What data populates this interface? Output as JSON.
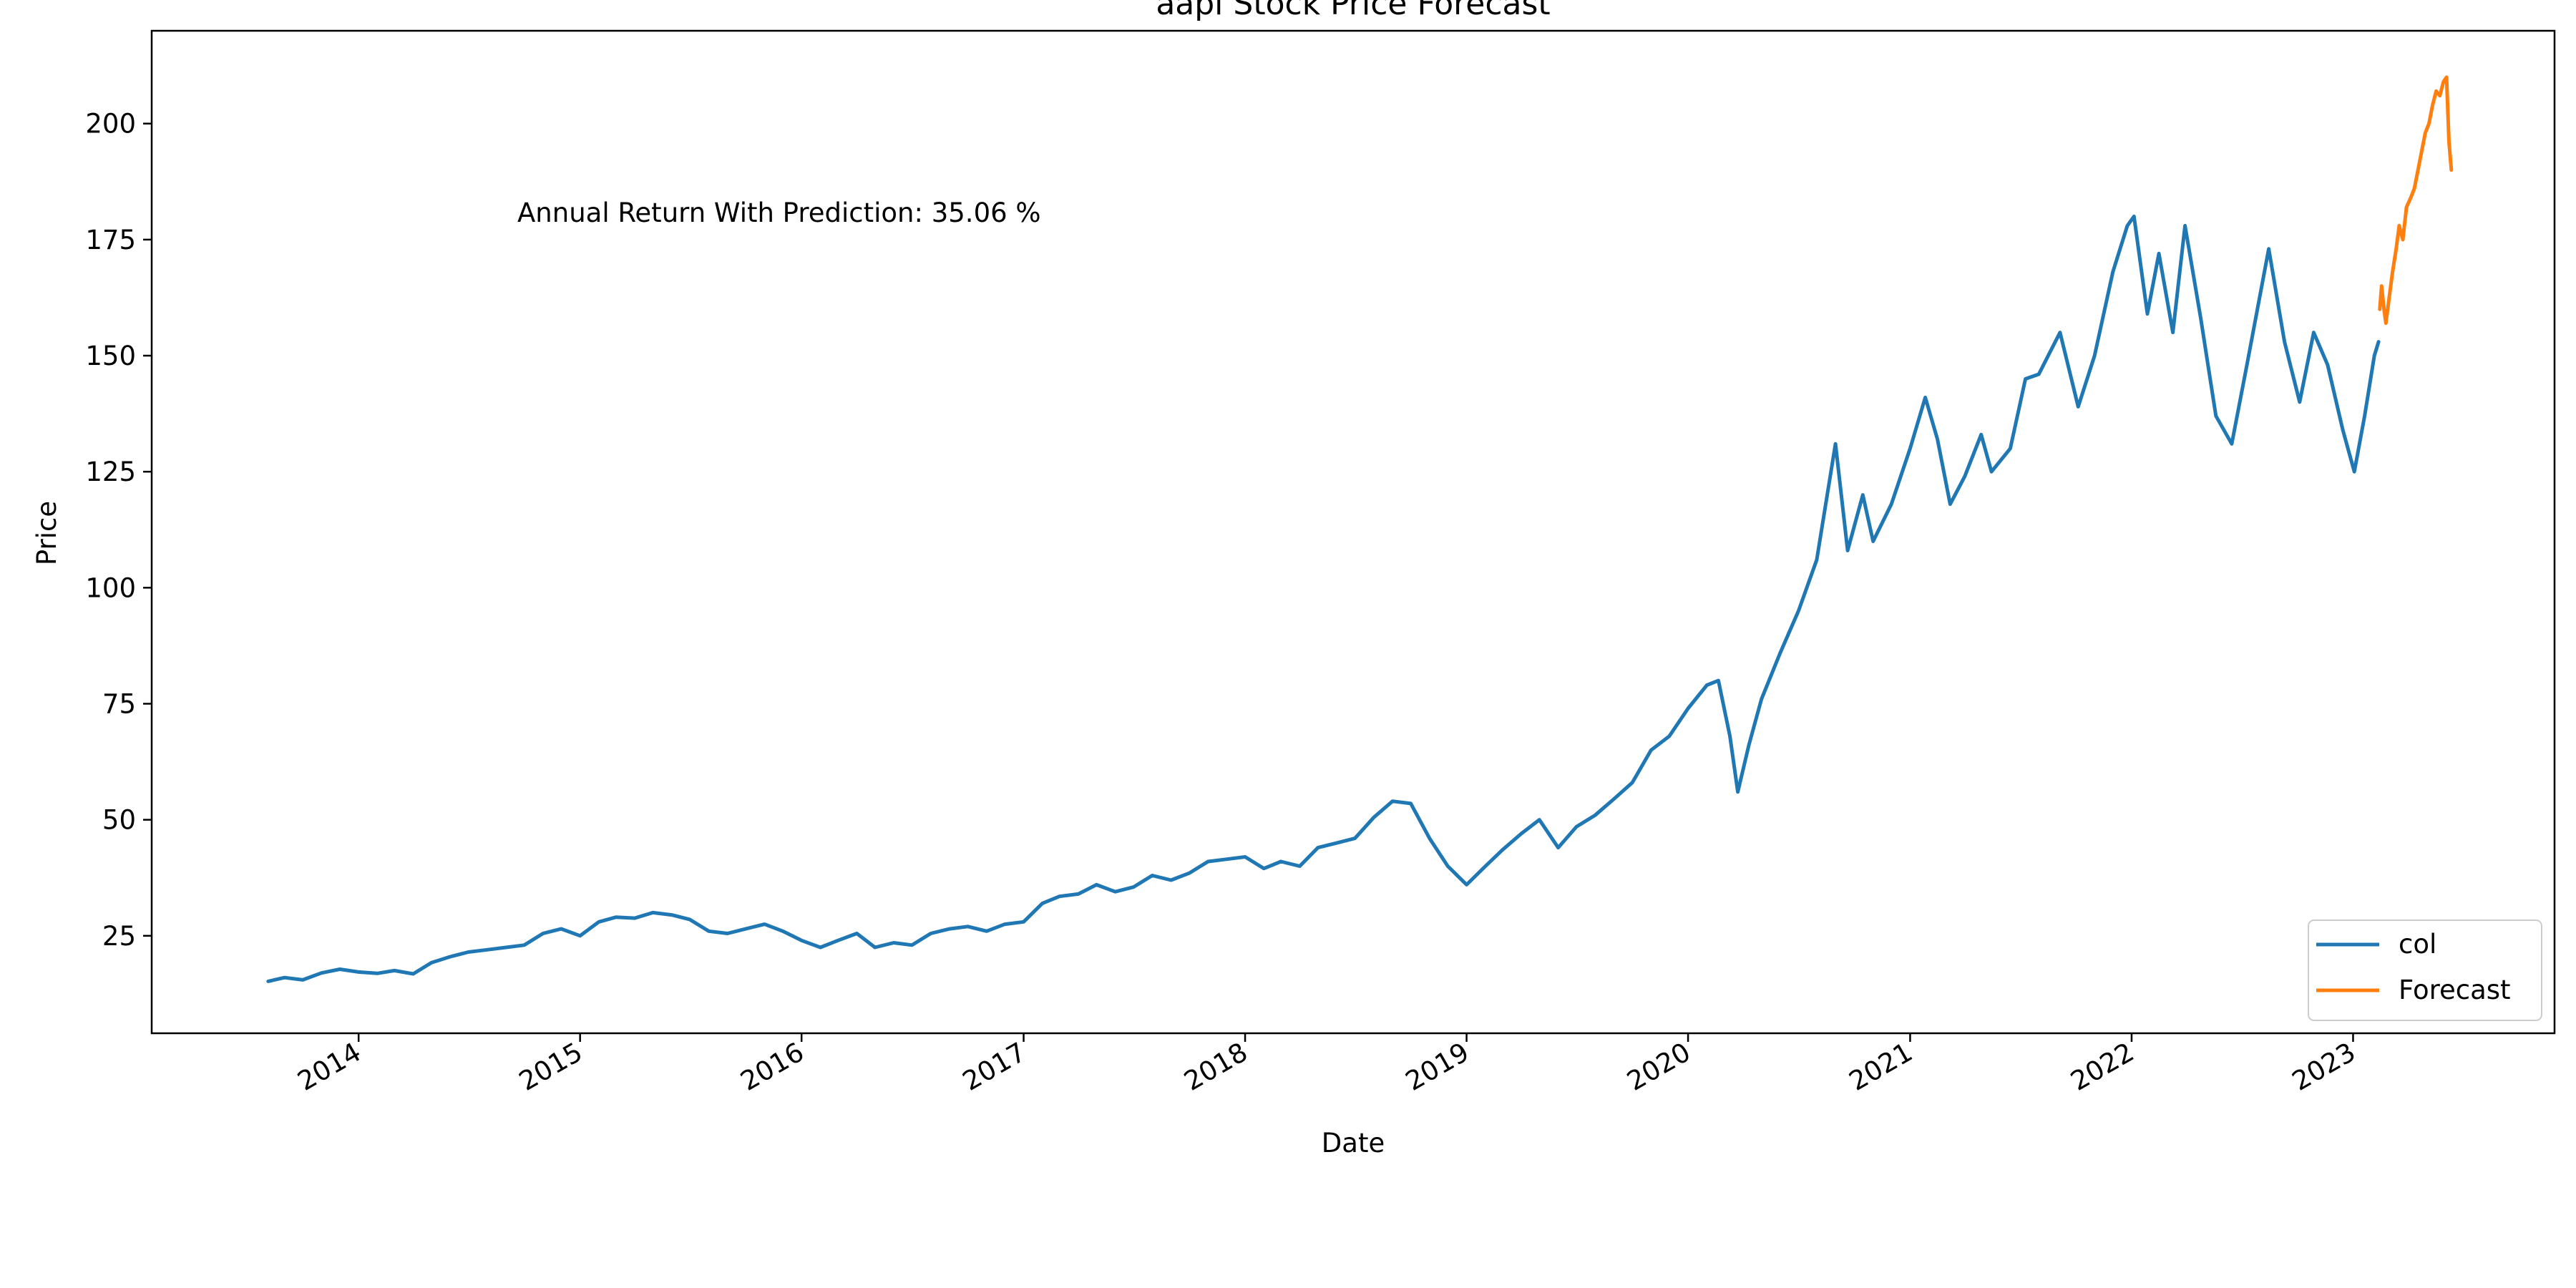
{
  "chart_data": {
    "type": "line",
    "title": "aapl Stock Price Forecast",
    "xlabel": "Date",
    "ylabel": "Price",
    "x_type": "date",
    "xlim": [
      "2013-01-25",
      "2023-11-29"
    ],
    "ylim": [
      4,
      220
    ],
    "x_ticks": [
      "2014-01-01",
      "2015-01-01",
      "2016-01-01",
      "2017-01-01",
      "2018-01-01",
      "2019-01-01",
      "2020-01-01",
      "2021-01-01",
      "2022-01-01",
      "2023-01-01"
    ],
    "x_tick_labels": [
      "2014",
      "2015",
      "2016",
      "2017",
      "2018",
      "2019",
      "2020",
      "2021",
      "2022",
      "2023"
    ],
    "y_ticks": [
      25,
      50,
      75,
      100,
      125,
      150,
      175,
      200
    ],
    "y_tick_labels": [
      "25",
      "50",
      "75",
      "100",
      "125",
      "150",
      "175",
      "200"
    ],
    "grid": false,
    "legend_position": "lower-right",
    "annotation": "Annual Return With Prediction: 35.06 %",
    "series": [
      {
        "name": "col",
        "color": "#1f77b4",
        "points": [
          [
            "2013-08-05",
            15.2
          ],
          [
            "2013-09-01",
            16.0
          ],
          [
            "2013-10-01",
            15.5
          ],
          [
            "2013-11-01",
            17.0
          ],
          [
            "2013-12-01",
            17.8
          ],
          [
            "2014-01-01",
            17.2
          ],
          [
            "2014-02-01",
            16.9
          ],
          [
            "2014-03-01",
            17.5
          ],
          [
            "2014-04-01",
            16.8
          ],
          [
            "2014-05-01",
            19.2
          ],
          [
            "2014-06-01",
            20.5
          ],
          [
            "2014-07-01",
            21.5
          ],
          [
            "2014-08-01",
            22.0
          ],
          [
            "2014-09-01",
            22.5
          ],
          [
            "2014-10-01",
            23.0
          ],
          [
            "2014-11-01",
            25.5
          ],
          [
            "2014-12-01",
            26.5
          ],
          [
            "2015-01-01",
            25.0
          ],
          [
            "2015-02-01",
            28.0
          ],
          [
            "2015-03-01",
            29.0
          ],
          [
            "2015-04-01",
            28.8
          ],
          [
            "2015-05-01",
            30.0
          ],
          [
            "2015-06-01",
            29.5
          ],
          [
            "2015-07-01",
            28.5
          ],
          [
            "2015-08-01",
            26.0
          ],
          [
            "2015-09-01",
            25.5
          ],
          [
            "2015-10-01",
            26.5
          ],
          [
            "2015-11-01",
            27.5
          ],
          [
            "2015-12-01",
            26.0
          ],
          [
            "2016-01-01",
            24.0
          ],
          [
            "2016-02-01",
            22.5
          ],
          [
            "2016-03-01",
            24.0
          ],
          [
            "2016-04-01",
            25.5
          ],
          [
            "2016-05-01",
            22.5
          ],
          [
            "2016-06-01",
            23.5
          ],
          [
            "2016-07-01",
            23.0
          ],
          [
            "2016-08-01",
            25.5
          ],
          [
            "2016-09-01",
            26.5
          ],
          [
            "2016-10-01",
            27.0
          ],
          [
            "2016-11-01",
            26.0
          ],
          [
            "2016-12-01",
            27.5
          ],
          [
            "2017-01-01",
            28.0
          ],
          [
            "2017-02-01",
            32.0
          ],
          [
            "2017-03-01",
            33.5
          ],
          [
            "2017-04-01",
            34.0
          ],
          [
            "2017-05-01",
            36.0
          ],
          [
            "2017-06-01",
            34.5
          ],
          [
            "2017-07-01",
            35.5
          ],
          [
            "2017-08-01",
            38.0
          ],
          [
            "2017-09-01",
            37.0
          ],
          [
            "2017-10-01",
            38.5
          ],
          [
            "2017-11-01",
            41.0
          ],
          [
            "2017-12-01",
            41.5
          ],
          [
            "2018-01-01",
            42.0
          ],
          [
            "2018-02-01",
            39.5
          ],
          [
            "2018-03-01",
            41.0
          ],
          [
            "2018-04-01",
            40.0
          ],
          [
            "2018-05-01",
            44.0
          ],
          [
            "2018-06-01",
            45.0
          ],
          [
            "2018-07-01",
            46.0
          ],
          [
            "2018-08-01",
            50.5
          ],
          [
            "2018-09-01",
            54.0
          ],
          [
            "2018-10-01",
            53.5
          ],
          [
            "2018-11-01",
            46.0
          ],
          [
            "2018-12-01",
            40.0
          ],
          [
            "2019-01-01",
            36.0
          ],
          [
            "2019-02-01",
            40.0
          ],
          [
            "2019-03-01",
            43.5
          ],
          [
            "2019-04-01",
            47.0
          ],
          [
            "2019-05-01",
            50.0
          ],
          [
            "2019-06-01",
            44.0
          ],
          [
            "2019-07-01",
            48.5
          ],
          [
            "2019-08-01",
            51.0
          ],
          [
            "2019-09-01",
            54.5
          ],
          [
            "2019-10-01",
            58.0
          ],
          [
            "2019-11-01",
            65.0
          ],
          [
            "2019-12-01",
            68.0
          ],
          [
            "2020-01-01",
            74.0
          ],
          [
            "2020-02-01",
            79.0
          ],
          [
            "2020-02-20",
            80.0
          ],
          [
            "2020-03-10",
            68.0
          ],
          [
            "2020-03-23",
            56.0
          ],
          [
            "2020-04-10",
            66.0
          ],
          [
            "2020-05-01",
            76.0
          ],
          [
            "2020-06-01",
            86.0
          ],
          [
            "2020-07-01",
            95.0
          ],
          [
            "2020-07-31",
            106.0
          ],
          [
            "2020-08-31",
            131.0
          ],
          [
            "2020-09-20",
            108.0
          ],
          [
            "2020-10-15",
            120.0
          ],
          [
            "2020-11-01",
            110.0
          ],
          [
            "2020-12-01",
            118.0
          ],
          [
            "2021-01-01",
            130.0
          ],
          [
            "2021-01-26",
            141.0
          ],
          [
            "2021-02-15",
            132.0
          ],
          [
            "2021-03-08",
            118.0
          ],
          [
            "2021-04-01",
            124.0
          ],
          [
            "2021-04-28",
            133.0
          ],
          [
            "2021-05-15",
            125.0
          ],
          [
            "2021-06-15",
            130.0
          ],
          [
            "2021-07-10",
            145.0
          ],
          [
            "2021-08-01",
            146.0
          ],
          [
            "2021-09-05",
            155.0
          ],
          [
            "2021-10-05",
            139.0
          ],
          [
            "2021-11-01",
            150.0
          ],
          [
            "2021-12-01",
            168.0
          ],
          [
            "2021-12-25",
            178.0
          ],
          [
            "2022-01-05",
            180.0
          ],
          [
            "2022-01-27",
            159.0
          ],
          [
            "2022-02-15",
            172.0
          ],
          [
            "2022-03-10",
            155.0
          ],
          [
            "2022-03-30",
            178.0
          ],
          [
            "2022-04-25",
            158.0
          ],
          [
            "2022-05-20",
            137.0
          ],
          [
            "2022-06-15",
            131.0
          ],
          [
            "2022-07-10",
            148.0
          ],
          [
            "2022-08-15",
            173.0
          ],
          [
            "2022-09-10",
            153.0
          ],
          [
            "2022-10-05",
            140.0
          ],
          [
            "2022-10-28",
            155.0
          ],
          [
            "2022-11-20",
            148.0
          ],
          [
            "2022-12-15",
            134.0
          ],
          [
            "2023-01-03",
            125.0
          ],
          [
            "2023-01-20",
            137.0
          ],
          [
            "2023-02-05",
            150.0
          ],
          [
            "2023-02-12",
            153.0
          ]
        ]
      },
      {
        "name": "Forecast",
        "color": "#ff7f0e",
        "points": [
          [
            "2023-02-14",
            160.0
          ],
          [
            "2023-02-17",
            165.0
          ],
          [
            "2023-02-21",
            160.0
          ],
          [
            "2023-02-24",
            157.0
          ],
          [
            "2023-03-01",
            162.0
          ],
          [
            "2023-03-07",
            168.0
          ],
          [
            "2023-03-13",
            173.0
          ],
          [
            "2023-03-18",
            178.0
          ],
          [
            "2023-03-24",
            175.0
          ],
          [
            "2023-03-30",
            182.0
          ],
          [
            "2023-04-06",
            184.0
          ],
          [
            "2023-04-12",
            186.0
          ],
          [
            "2023-04-18",
            190.0
          ],
          [
            "2023-04-24",
            194.0
          ],
          [
            "2023-04-30",
            198.0
          ],
          [
            "2023-05-06",
            200.0
          ],
          [
            "2023-05-12",
            204.0
          ],
          [
            "2023-05-18",
            207.0
          ],
          [
            "2023-05-24",
            206.0
          ],
          [
            "2023-05-30",
            209.0
          ],
          [
            "2023-06-04",
            210.0
          ],
          [
            "2023-06-08",
            196.0
          ],
          [
            "2023-06-12",
            190.0
          ]
        ]
      }
    ]
  }
}
